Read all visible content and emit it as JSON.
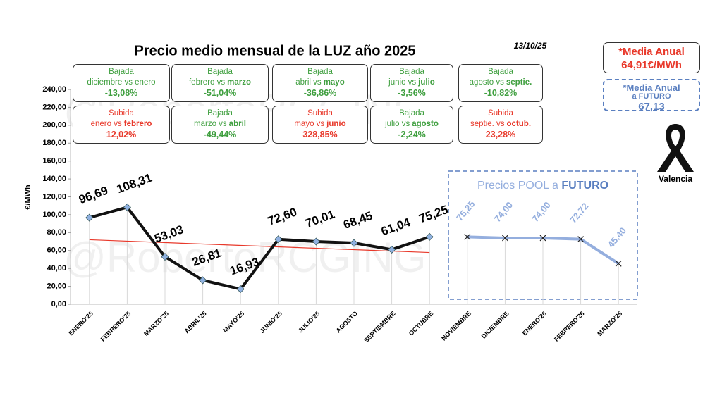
{
  "chart_data": {
    "type": "line",
    "title": "Precio medio mensual de la LUZ año 2025",
    "date": "13/10/25",
    "y_label": "€/MWh",
    "watermark": "@RobertoRCGING",
    "categories": [
      "ENERO'25",
      "FEBRERO'25",
      "MARZO'25",
      "ABRIL'25",
      "MAYO'25",
      "JUNIO'25",
      "JULIO'25",
      "AGOSTO",
      "SEPTIEMBRE",
      "OCTUBRE",
      "NOVIEMBRE",
      "DICIEMBRE",
      "ENERO'26",
      "FEBRERO'26",
      "MARZO'25"
    ],
    "series": [
      {
        "color": "#111111",
        "marker_color": "#8fb0e0",
        "values": [
          96.69,
          108.31,
          53.03,
          26.81,
          16.93,
          72.6,
          70.01,
          68.45,
          61.04,
          75.25,
          null,
          null,
          null,
          null,
          null
        ],
        "value_labels": [
          "96,69",
          "108,31",
          "53,03",
          "26,81",
          "16,93",
          "72,60",
          "70,01",
          "68,45",
          "61,04",
          "75,25",
          null,
          null,
          null,
          null,
          null
        ]
      },
      {
        "color": "#94aede",
        "values": [
          null,
          null,
          null,
          null,
          null,
          null,
          null,
          null,
          null,
          null,
          75.25,
          74.0,
          74.0,
          72.72,
          45.4
        ],
        "value_labels": [
          null,
          null,
          null,
          null,
          null,
          null,
          null,
          null,
          null,
          null,
          "75,25",
          "74,00",
          "74,00",
          "72,72",
          "45,40"
        ]
      }
    ],
    "trend_color": "#e8392b",
    "ylim": [
      0,
      240
    ],
    "yticks": [
      {
        "value": 0,
        "label": "0,00"
      },
      {
        "value": 20,
        "label": "20,00"
      },
      {
        "value": 40,
        "label": "40,00"
      },
      {
        "value": 60,
        "label": "60,00"
      },
      {
        "value": 80,
        "label": "80,00"
      },
      {
        "value": 100,
        "label": "100,00"
      },
      {
        "value": 120,
        "label": "120,00"
      },
      {
        "value": 140,
        "label": "140,00"
      },
      {
        "value": 160,
        "label": "160,00"
      },
      {
        "value": 180,
        "label": "180,00"
      },
      {
        "value": 200,
        "label": "200,00"
      },
      {
        "value": 220,
        "label": "220,00"
      },
      {
        "value": 240,
        "label": "240,00"
      }
    ],
    "future_box": [
      "Precios POOL a",
      "FUTURO"
    ],
    "comparisons": [
      {
        "kind": "Bajada",
        "color": "#3f9f3f",
        "text": [
          "diciembre vs enero"
        ],
        "change": "-13,08%"
      },
      {
        "kind": "Bajada",
        "color": "#3f9f3f",
        "text": [
          "febrero vs",
          "marzo"
        ],
        "change": "-51,04%"
      },
      {
        "kind": "Bajada",
        "color": "#3f9f3f",
        "text": [
          "abril vs",
          "mayo"
        ],
        "change": "-36,86%"
      },
      {
        "kind": "Bajada",
        "color": "#3f9f3f",
        "text": [
          "junio vs",
          "julio"
        ],
        "change": "-3,56%"
      },
      {
        "kind": "Bajada",
        "color": "#3f9f3f",
        "text": [
          "agosto vs",
          "septie."
        ],
        "change": "-10,82%"
      },
      {
        "kind": "Subida",
        "color": "#e8392b",
        "text": [
          "enero vs",
          "febrero"
        ],
        "change": "12,02%"
      },
      {
        "kind": "Bajada",
        "color": "#3f9f3f",
        "text": [
          "marzo vs",
          "abril"
        ],
        "change": "-49,44%"
      },
      {
        "kind": "Subida",
        "color": "#e8392b",
        "text": [
          "mayo vs",
          "junio"
        ],
        "change": "328,85%"
      },
      {
        "kind": "Bajada",
        "color": "#3f9f3f",
        "text": [
          "julio vs",
          "agosto"
        ],
        "change": "-2,24%"
      },
      {
        "kind": "Subida",
        "color": "#e8392b",
        "text": [
          "septie. vs",
          "octub."
        ],
        "change": "23,28%"
      }
    ],
    "summary": [
      {
        "lines": [
          "*Media Anual",
          "64,91€/MWh"
        ],
        "color": "#e8392b"
      },
      {
        "lines": [
          "*Media Anual",
          "a FUTURO",
          "67,13"
        ],
        "color": "#5a7fc0"
      }
    ],
    "location": "Valencia"
  }
}
